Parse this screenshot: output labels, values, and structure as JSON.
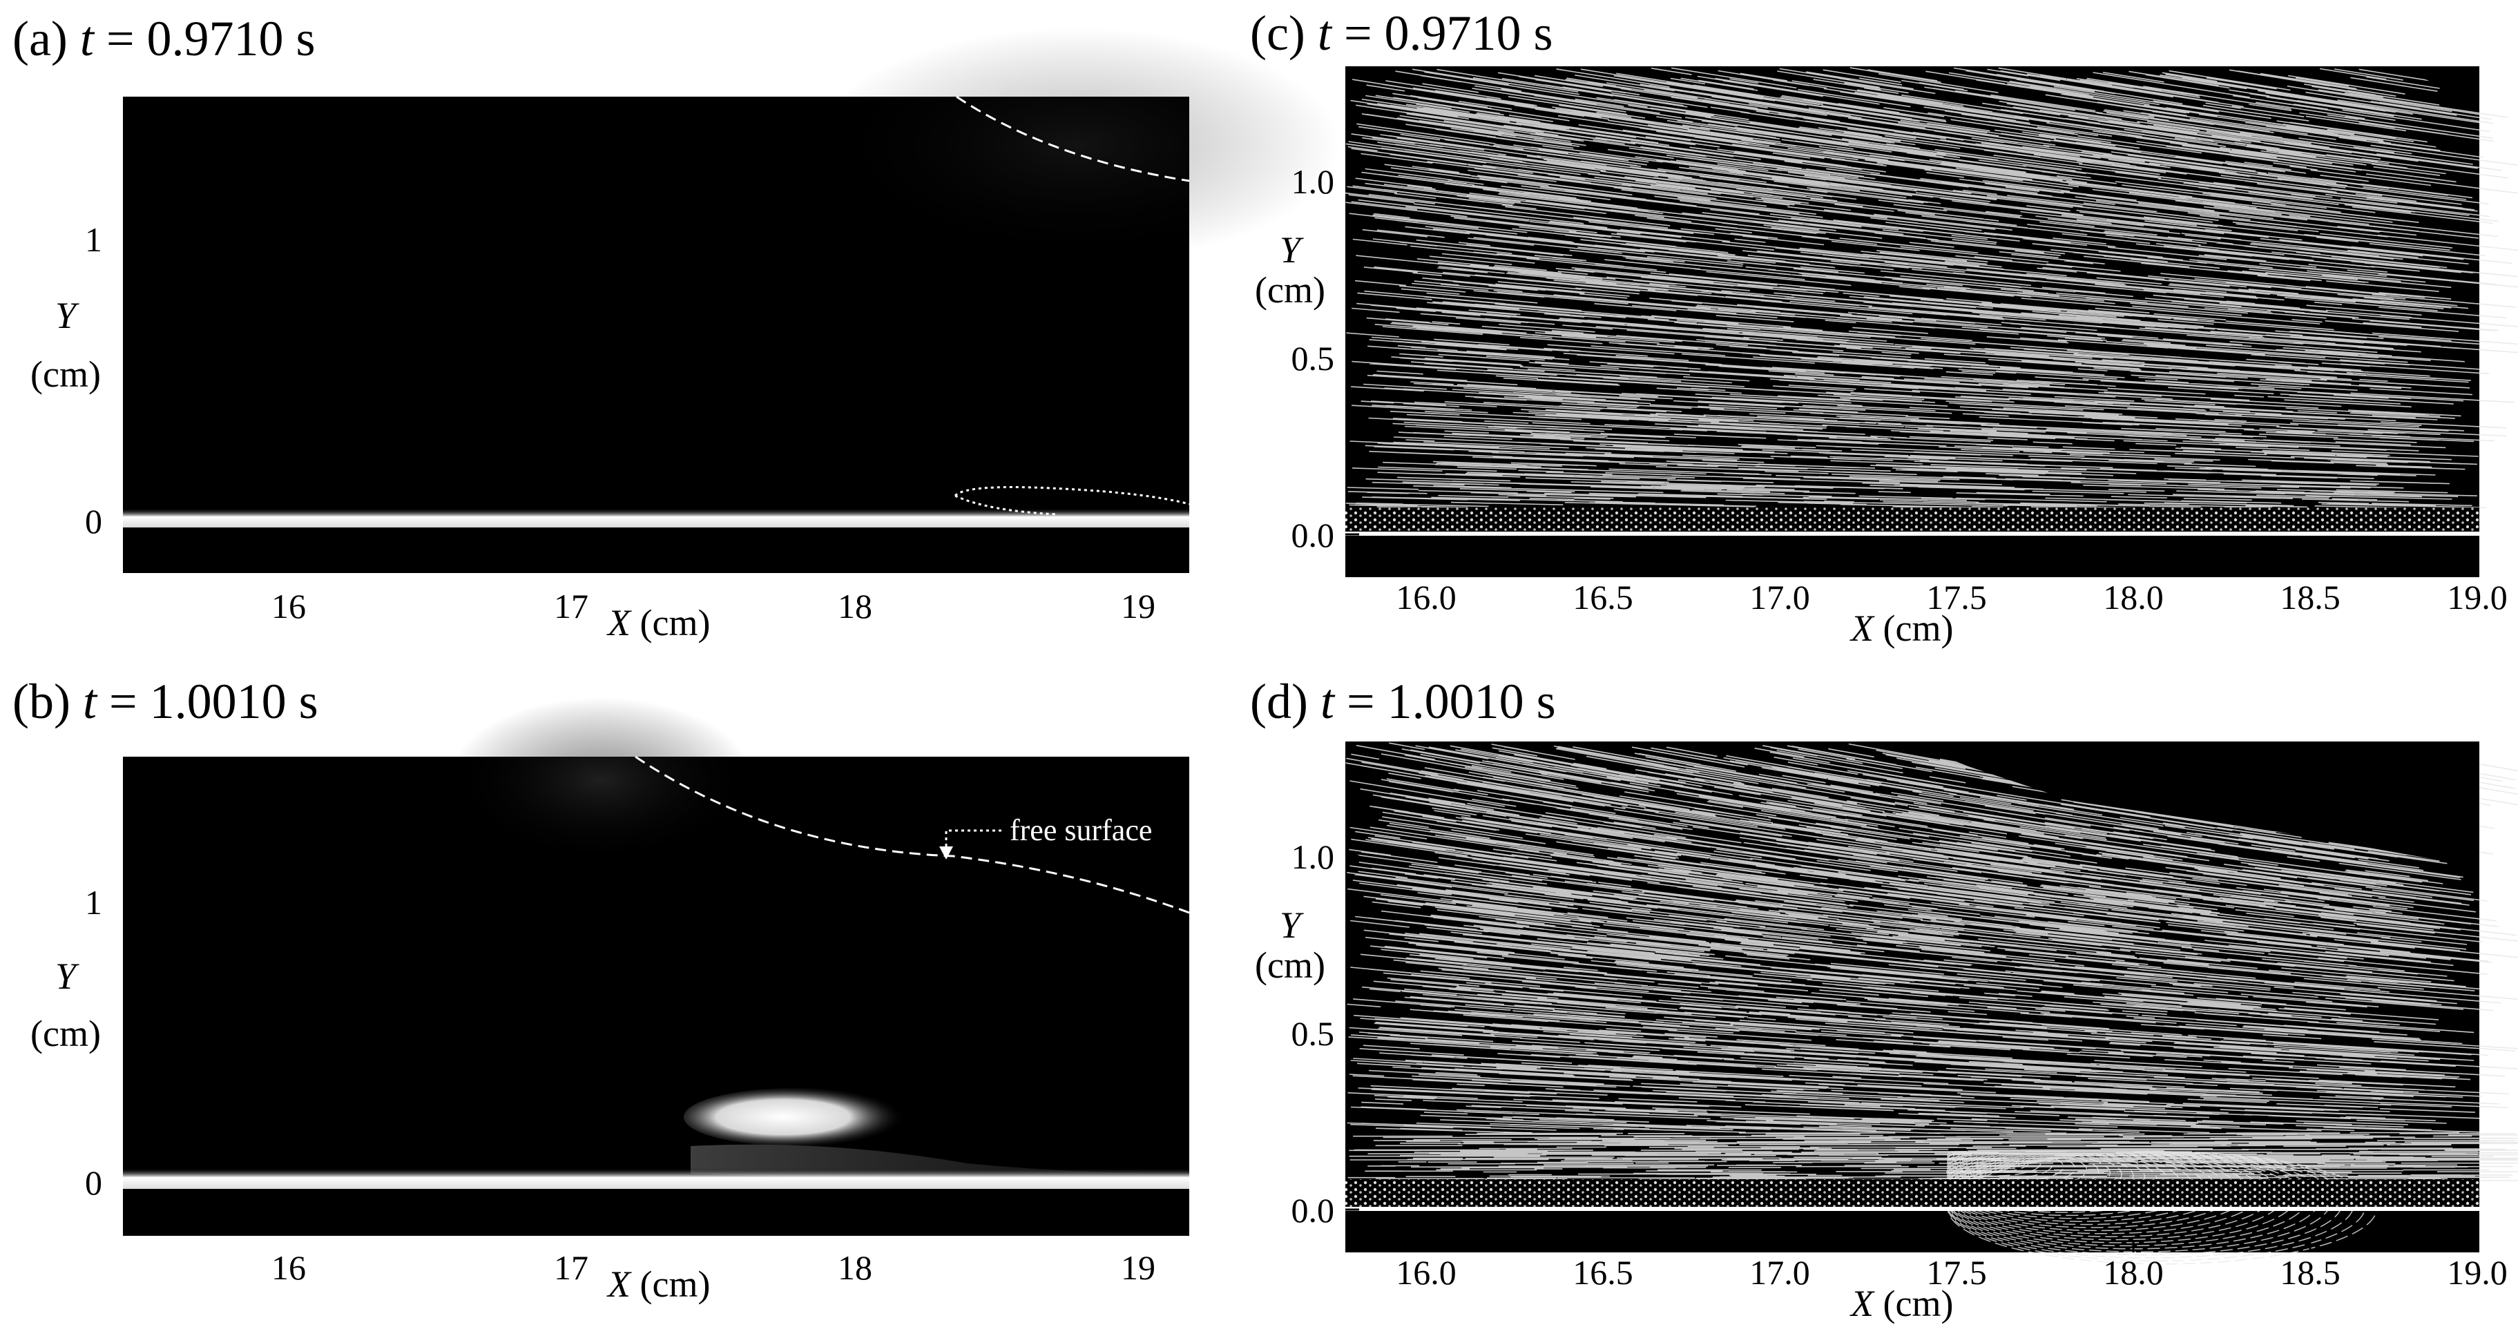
{
  "panels": [
    {
      "id": "a",
      "title_prefix": "(a) ",
      "title_var": "t",
      "title_value": " = 0.9710 s",
      "kind": "dye",
      "x_ticks": [
        "16",
        "17",
        "18",
        "19"
      ],
      "y_ticks": [
        "0",
        "1"
      ],
      "x_label_var": "X",
      "x_label_unit": "(cm)",
      "y_label_var": "Y",
      "y_label_unit": "(cm)"
    },
    {
      "id": "b",
      "title_prefix": "(b) ",
      "title_var": "t",
      "title_value": " = 1.0010 s",
      "kind": "dye",
      "x_ticks": [
        "16",
        "17",
        "18",
        "19"
      ],
      "y_ticks": [
        "0",
        "1"
      ],
      "x_label_var": "X",
      "x_label_unit": "(cm)",
      "y_label_var": "Y",
      "y_label_unit": "(cm)",
      "annotation": "free surface"
    },
    {
      "id": "c",
      "title_prefix": "(c) ",
      "title_var": "t",
      "title_value": " = 0.9710 s",
      "kind": "streak",
      "x_ticks": [
        "16.0",
        "16.5",
        "17.0",
        "17.5",
        "18.0",
        "18.5",
        "19.0"
      ],
      "y_ticks": [
        "0.0",
        "0.5",
        "1.0"
      ],
      "x_label_var": "X",
      "x_label_unit": "(cm)",
      "y_label_var": "Y",
      "y_label_unit": "(cm)"
    },
    {
      "id": "d",
      "title_prefix": "(d) ",
      "title_var": "t",
      "title_value": " = 1.0010 s",
      "kind": "streak",
      "x_ticks": [
        "16.0",
        "16.5",
        "17.0",
        "17.5",
        "18.0",
        "18.5",
        "19.0"
      ],
      "y_ticks": [
        "0.0",
        "0.5",
        "1.0"
      ],
      "x_label_var": "X",
      "x_label_unit": "(cm)",
      "y_label_var": "Y",
      "y_label_unit": "(cm)"
    }
  ],
  "colors": {
    "background": "#000000",
    "wall_glow": "#ffffff",
    "streak": "#e8e8e8",
    "free_surface_line": "#ffffff"
  }
}
